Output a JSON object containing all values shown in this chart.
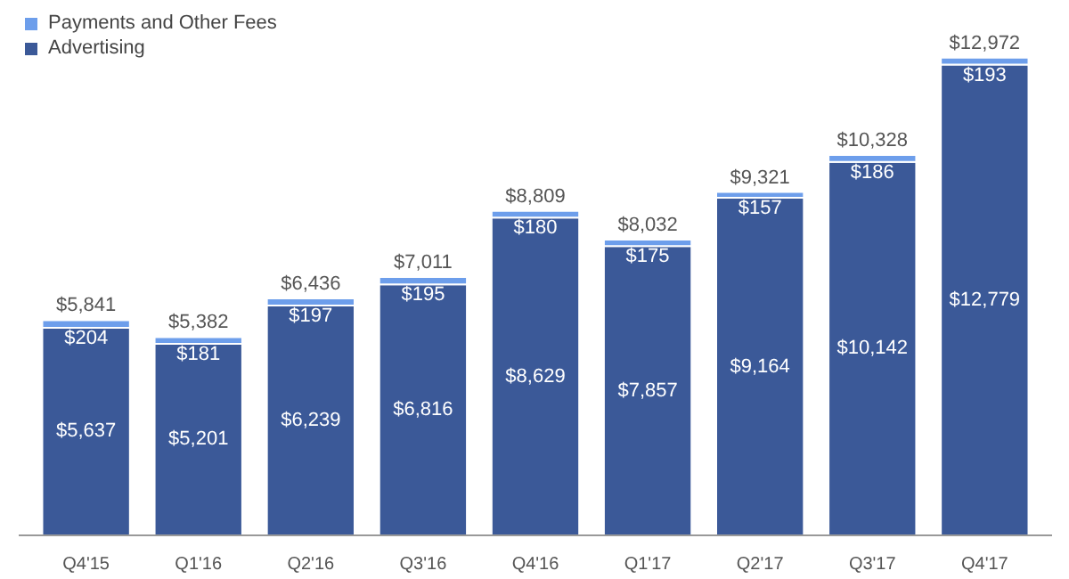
{
  "chart_data": {
    "type": "bar",
    "stacked": true,
    "legend": "top left",
    "categories": [
      "Q4'15",
      "Q1'16",
      "Q2'16",
      "Q3'16",
      "Q4'16",
      "Q1'17",
      "Q2'17",
      "Q3'17",
      "Q4'17"
    ],
    "series": [
      {
        "name": "Advertising",
        "color": "#3b5998",
        "values": [
          5637,
          5201,
          6239,
          6816,
          8629,
          7857,
          9164,
          10142,
          12779
        ],
        "value_labels": [
          "$5,637",
          "$5,201",
          "$6,239",
          "$6,816",
          "$8,629",
          "$7,857",
          "$9,164",
          "$10,142",
          "$12,779"
        ]
      },
      {
        "name": "Payments and Other Fees",
        "color": "#6d9eeb",
        "values": [
          204,
          181,
          197,
          195,
          180,
          175,
          157,
          186,
          193
        ],
        "value_labels": [
          "$204",
          "$181",
          "$197",
          "$195",
          "$180",
          "$175",
          "$157",
          "$186",
          "$193"
        ]
      }
    ],
    "totals": [
      "$5,841",
      "$5,382",
      "$6,436",
      "$7,011",
      "$8,809",
      "$8,032",
      "$9,321",
      "$10,328",
      "$12,972"
    ]
  }
}
